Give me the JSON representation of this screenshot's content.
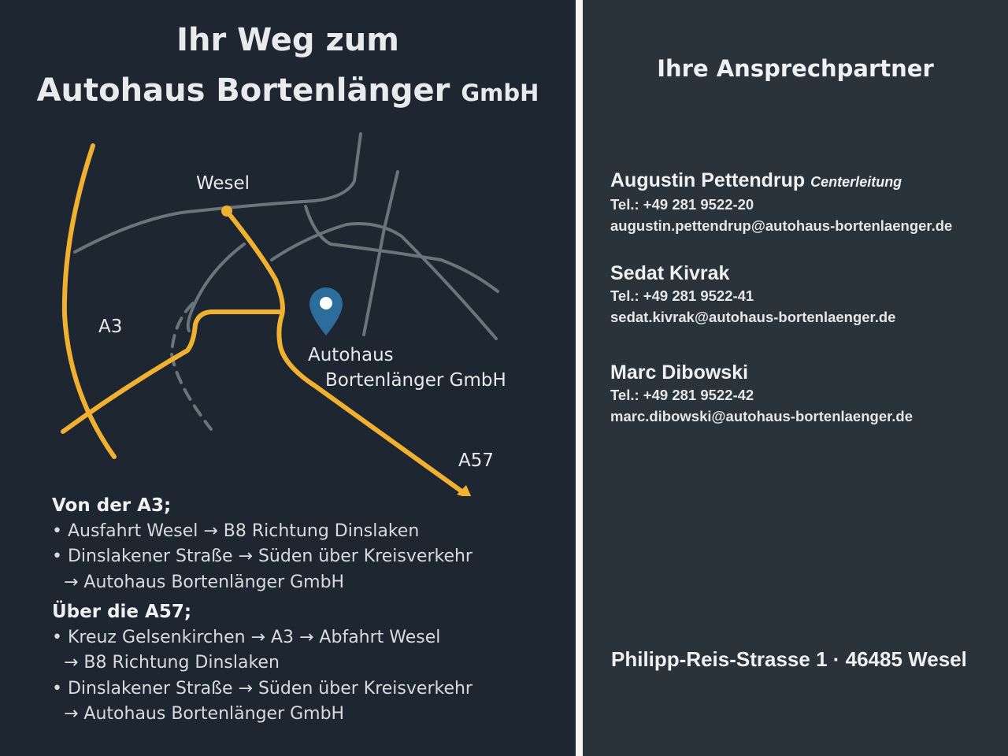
{
  "left": {
    "title_line1": "Ihr Weg zum",
    "title_line2": "Autohaus Bortenlänger",
    "title_suffix": "GmbH",
    "map": {
      "labels": {
        "city": "Wesel",
        "highway_a3": "A3",
        "highway_a57": "A57",
        "destination_line1": "Autohaus",
        "destination_line2": "Bortenlänger GmbH"
      },
      "colors": {
        "route": "#f0b030",
        "road": "#6b737b",
        "pin": "#2d6d9b"
      },
      "icons": {
        "destination": "map-pin-icon"
      }
    },
    "directions": [
      {
        "heading": "Von der A3;",
        "lines": [
          {
            "text": "• Ausfahrt Wesel → B8 Richtung Dinslaken",
            "indent": false
          },
          {
            "text": "• Dinslakener Straße → Süden über Kreisverkehr",
            "indent": false
          },
          {
            "text": "→ Autohaus Bortenlänger GmbH",
            "indent": true
          }
        ]
      },
      {
        "heading": "Über die A57;",
        "lines": [
          {
            "text": "• Kreuz Gelsenkirchen → A3 → Abfahrt Wesel",
            "indent": false
          },
          {
            "text": "→ B8 Richtung Dinslaken",
            "indent": true
          },
          {
            "text": "• Dinslakener Straße → Süden über Kreisverkehr",
            "indent": false
          },
          {
            "text": "→ Autohaus Bortenlänger GmbH",
            "indent": true
          }
        ]
      }
    ]
  },
  "right": {
    "heading": "Ihre Ansprechpartner",
    "contacts": [
      {
        "name": "Augustin Pettendrup",
        "role": "Centerleitung",
        "phone": "Tel.: +49 281 9522-20",
        "email": "augustin.pettendrup@autohaus-bortenlaenger.de"
      },
      {
        "name": "Sedat Kivrak",
        "role": "",
        "phone": "Tel.: +49 281 9522-41",
        "email": "sedat.kivrak@autohaus-bortenlaenger.de"
      },
      {
        "name": "Marc Dibowski",
        "role": "",
        "phone": "Tel.: +49 281 9522-42",
        "email": "marc.dibowski@autohaus-bortenlaenger.de"
      }
    ],
    "address": "Philipp-Reis-Strasse 1 · 46485 Wesel"
  }
}
